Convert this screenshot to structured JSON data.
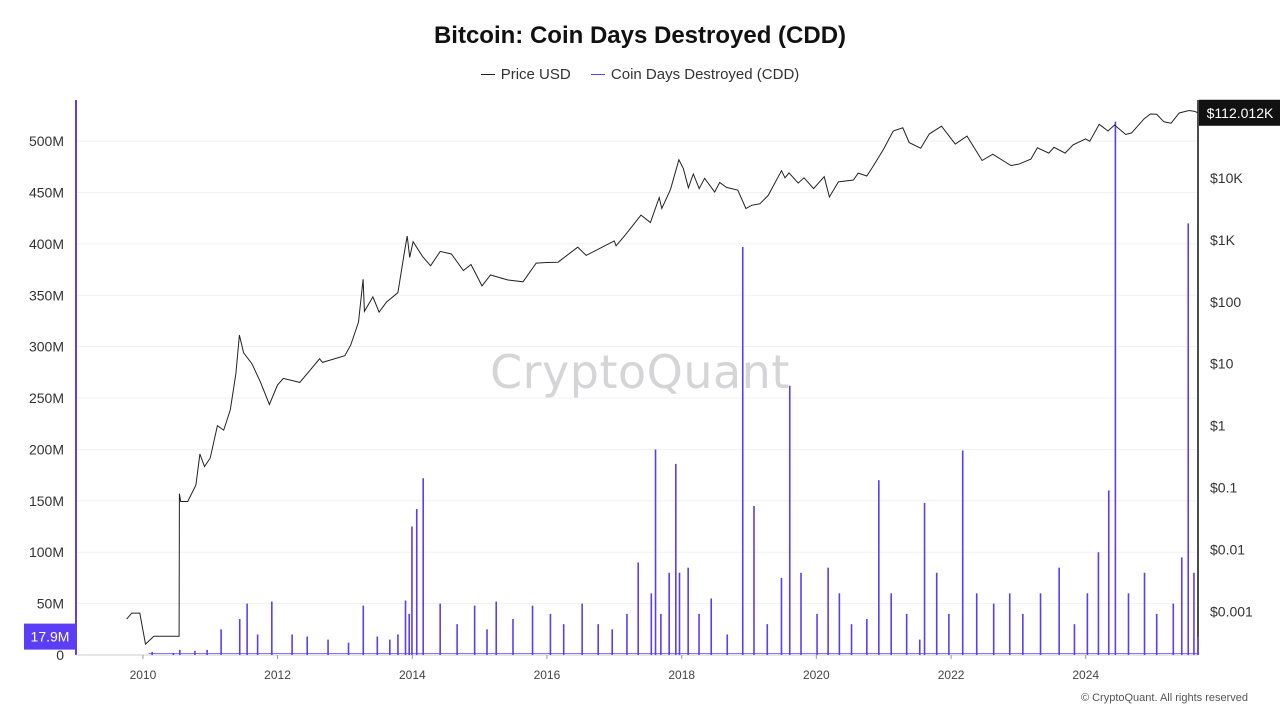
{
  "chart_data": {
    "type": "line",
    "title": "Bitcoin: Coin Days Destroyed (CDD)",
    "legend": [
      "Price USD",
      "Coin Days Destroyed (CDD)"
    ],
    "legend_placement": "top-center",
    "colors": {
      "price": "#222222",
      "cdd": "#5b3df5"
    },
    "watermark": "CryptoQuant",
    "copyright": "© CryptoQuant. All rights reserved",
    "x_axis": {
      "type": "date",
      "range": [
        "2009-01-03",
        "2025-09-01"
      ],
      "tick_labels": [
        "2010",
        "2012",
        "2014",
        "2016",
        "2018",
        "2020",
        "2022",
        "2024"
      ]
    },
    "y_left": {
      "label": "",
      "range": [
        0,
        540000000
      ],
      "tick_values": [
        0,
        50000000,
        100000000,
        150000000,
        200000000,
        250000000,
        300000000,
        350000000,
        400000000,
        450000000,
        500000000
      ],
      "tick_labels": [
        "0",
        "50M",
        "100M",
        "150M",
        "200M",
        "250M",
        "300M",
        "350M",
        "400M",
        "450M",
        "500M"
      ]
    },
    "y_right": {
      "label": "",
      "scale": "log",
      "range": [
        0.0002,
        180000
      ],
      "tick_values": [
        0.001,
        0.01,
        0.1,
        1,
        10,
        100,
        1000,
        10000
      ],
      "tick_labels": [
        "$0.001",
        "$0.01",
        "$0.1",
        "$1",
        "$10",
        "$100",
        "$1K",
        "$10K"
      ]
    },
    "current_values": {
      "cdd": "17.9M",
      "price": "$112.012K"
    },
    "series": [
      {
        "name": "Price USD",
        "axis": "right",
        "points": [
          [
            "2009-10-05",
            0.00076
          ],
          [
            "2009-11-01",
            0.00095
          ],
          [
            "2009-12-15",
            0.00095
          ],
          [
            "2010-01-15",
            0.0003
          ],
          [
            "2010-03-01",
            0.0004
          ],
          [
            "2010-07-16",
            0.0004
          ],
          [
            "2010-07-18",
            0.08
          ],
          [
            "2010-07-25",
            0.06
          ],
          [
            "2010-09-01",
            0.06
          ],
          [
            "2010-10-15",
            0.11
          ],
          [
            "2010-11-06",
            0.35
          ],
          [
            "2010-12-01",
            0.22
          ],
          [
            "2011-01-01",
            0.3
          ],
          [
            "2011-02-09",
            1.0
          ],
          [
            "2011-03-15",
            0.85
          ],
          [
            "2011-04-20",
            1.8
          ],
          [
            "2011-05-20",
            7.0
          ],
          [
            "2011-06-08",
            29.0
          ],
          [
            "2011-07-01",
            15.0
          ],
          [
            "2011-08-15",
            10.0
          ],
          [
            "2011-10-01",
            5.0
          ],
          [
            "2011-11-18",
            2.2
          ],
          [
            "2011-12-31",
            4.5
          ],
          [
            "2012-02-01",
            5.8
          ],
          [
            "2012-05-01",
            5.0
          ],
          [
            "2012-08-16",
            12.0
          ],
          [
            "2012-09-01",
            10.5
          ],
          [
            "2012-12-31",
            13.5
          ],
          [
            "2013-02-01",
            20.0
          ],
          [
            "2013-03-15",
            47.0
          ],
          [
            "2013-04-09",
            230.0
          ],
          [
            "2013-04-16",
            70.0
          ],
          [
            "2013-06-01",
            120.0
          ],
          [
            "2013-07-05",
            68.0
          ],
          [
            "2013-08-15",
            100.0
          ],
          [
            "2013-10-15",
            140.0
          ],
          [
            "2013-11-18",
            600.0
          ],
          [
            "2013-12-04",
            1150.0
          ],
          [
            "2013-12-18",
            520.0
          ],
          [
            "2014-01-05",
            930.0
          ],
          [
            "2014-02-25",
            540.0
          ],
          [
            "2014-04-10",
            380.0
          ],
          [
            "2014-06-01",
            650.0
          ],
          [
            "2014-08-01",
            590.0
          ],
          [
            "2014-10-05",
            320.0
          ],
          [
            "2014-11-15",
            400.0
          ],
          [
            "2015-01-14",
            180.0
          ],
          [
            "2015-03-01",
            270.0
          ],
          [
            "2015-06-01",
            225.0
          ],
          [
            "2015-08-24",
            210.0
          ],
          [
            "2015-11-04",
            420.0
          ],
          [
            "2015-12-31",
            430.0
          ],
          [
            "2016-03-01",
            435.0
          ],
          [
            "2016-06-16",
            760.0
          ],
          [
            "2016-08-01",
            560.0
          ],
          [
            "2016-12-31",
            960.0
          ],
          [
            "2017-01-10",
            800.0
          ],
          [
            "2017-03-01",
            1200.0
          ],
          [
            "2017-05-25",
            2500.0
          ],
          [
            "2017-07-15",
            1900.0
          ],
          [
            "2017-09-01",
            4800.0
          ],
          [
            "2017-09-15",
            3200.0
          ],
          [
            "2017-11-01",
            6500.0
          ],
          [
            "2017-12-17",
            19500.0
          ],
          [
            "2018-01-10",
            14000.0
          ],
          [
            "2018-02-06",
            6900.0
          ],
          [
            "2018-03-05",
            11500.0
          ],
          [
            "2018-04-06",
            6700.0
          ],
          [
            "2018-05-05",
            9800.0
          ],
          [
            "2018-06-29",
            5900.0
          ],
          [
            "2018-07-26",
            8400.0
          ],
          [
            "2018-09-01",
            7000.0
          ],
          [
            "2018-11-01",
            6300.0
          ],
          [
            "2018-12-15",
            3200.0
          ],
          [
            "2019-01-15",
            3600.0
          ],
          [
            "2019-03-01",
            3800.0
          ],
          [
            "2019-04-15",
            5200.0
          ],
          [
            "2019-06-26",
            13000.0
          ],
          [
            "2019-07-15",
            10000.0
          ],
          [
            "2019-08-06",
            12000.0
          ],
          [
            "2019-09-25",
            8200.0
          ],
          [
            "2019-10-26",
            10000.0
          ],
          [
            "2019-12-17",
            6700.0
          ],
          [
            "2020-02-13",
            10400.0
          ],
          [
            "2020-03-12",
            4900.0
          ],
          [
            "2020-04-30",
            8600.0
          ],
          [
            "2020-07-20",
            9200.0
          ],
          [
            "2020-08-15",
            11900.0
          ],
          [
            "2020-10-01",
            10700.0
          ],
          [
            "2020-11-05",
            15500.0
          ],
          [
            "2020-12-31",
            29000.0
          ],
          [
            "2021-02-21",
            57000.0
          ],
          [
            "2021-04-14",
            64000.0
          ],
          [
            "2021-05-19",
            37000.0
          ],
          [
            "2021-07-20",
            30000.0
          ],
          [
            "2021-09-05",
            51000.0
          ],
          [
            "2021-11-10",
            68000.0
          ],
          [
            "2022-01-24",
            35000.0
          ],
          [
            "2022-03-28",
            47000.0
          ],
          [
            "2022-06-18",
            19000.0
          ],
          [
            "2022-08-15",
            24000.0
          ],
          [
            "2022-11-21",
            15800.0
          ],
          [
            "2023-01-01",
            16500.0
          ],
          [
            "2023-03-10",
            20000.0
          ],
          [
            "2023-04-14",
            30500.0
          ],
          [
            "2023-06-15",
            25000.0
          ],
          [
            "2023-07-13",
            31000.0
          ],
          [
            "2023-09-11",
            25000.0
          ],
          [
            "2023-10-24",
            34000.0
          ],
          [
            "2023-12-31",
            42500.0
          ],
          [
            "2024-01-23",
            39000.0
          ],
          [
            "2024-03-14",
            73000.0
          ],
          [
            "2024-05-01",
            57000.0
          ],
          [
            "2024-06-05",
            71000.0
          ],
          [
            "2024-08-05",
            50000.0
          ],
          [
            "2024-09-06",
            53000.0
          ],
          [
            "2024-11-13",
            90000.0
          ],
          [
            "2024-12-17",
            107000.0
          ],
          [
            "2025-01-20",
            106000.0
          ],
          [
            "2025-02-28",
            80000.0
          ],
          [
            "2025-04-08",
            76000.0
          ],
          [
            "2025-05-22",
            111000.0
          ],
          [
            "2025-07-14",
            122000.0
          ],
          [
            "2025-08-14",
            118000.0
          ],
          [
            "2025-09-01",
            112012.0
          ]
        ]
      },
      {
        "name": "Coin Days Destroyed (CDD)",
        "axis": "left",
        "points": [
          [
            "2010-02-20",
            3000000
          ],
          [
            "2010-06-15",
            2000000
          ],
          [
            "2010-07-20",
            5000000
          ],
          [
            "2010-10-10",
            4000000
          ],
          [
            "2010-12-15",
            5000000
          ],
          [
            "2011-03-01",
            25000000
          ],
          [
            "2011-06-10",
            35000000
          ],
          [
            "2011-07-20",
            50000000
          ],
          [
            "2011-09-15",
            20000000
          ],
          [
            "2011-12-01",
            52000000
          ],
          [
            "2012-03-20",
            20000000
          ],
          [
            "2012-06-10",
            18000000
          ],
          [
            "2012-10-01",
            15000000
          ],
          [
            "2013-01-20",
            12000000
          ],
          [
            "2013-04-10",
            48000000
          ],
          [
            "2013-06-25",
            18000000
          ],
          [
            "2013-09-01",
            15000000
          ],
          [
            "2013-10-15",
            20000000
          ],
          [
            "2013-11-25",
            53000000
          ],
          [
            "2013-12-15",
            40000000
          ],
          [
            "2013-12-30",
            125000000
          ],
          [
            "2014-01-25",
            142000000
          ],
          [
            "2014-03-01",
            172000000
          ],
          [
            "2014-06-01",
            50000000
          ],
          [
            "2014-09-01",
            30000000
          ],
          [
            "2014-12-05",
            48000000
          ],
          [
            "2015-02-10",
            25000000
          ],
          [
            "2015-04-01",
            52000000
          ],
          [
            "2015-07-01",
            35000000
          ],
          [
            "2015-10-15",
            48000000
          ],
          [
            "2016-01-20",
            40000000
          ],
          [
            "2016-04-01",
            30000000
          ],
          [
            "2016-07-10",
            50000000
          ],
          [
            "2016-10-05",
            30000000
          ],
          [
            "2016-12-20",
            25000000
          ],
          [
            "2017-03-10",
            40000000
          ],
          [
            "2017-05-10",
            90000000
          ],
          [
            "2017-07-20",
            60000000
          ],
          [
            "2017-08-12",
            200000000
          ],
          [
            "2017-09-10",
            40000000
          ],
          [
            "2017-10-25",
            80000000
          ],
          [
            "2017-11-30",
            186000000
          ],
          [
            "2017-12-20",
            80000000
          ],
          [
            "2018-02-05",
            85000000
          ],
          [
            "2018-04-05",
            40000000
          ],
          [
            "2018-06-10",
            55000000
          ],
          [
            "2018-09-05",
            20000000
          ],
          [
            "2018-11-28",
            397000000
          ],
          [
            "2019-01-28",
            145000000
          ],
          [
            "2019-04-10",
            30000000
          ],
          [
            "2019-06-26",
            75000000
          ],
          [
            "2019-08-10",
            262000000
          ],
          [
            "2019-10-10",
            80000000
          ],
          [
            "2020-01-05",
            40000000
          ],
          [
            "2020-03-05",
            85000000
          ],
          [
            "2020-05-05",
            60000000
          ],
          [
            "2020-07-10",
            30000000
          ],
          [
            "2020-10-01",
            35000000
          ],
          [
            "2020-12-05",
            170000000
          ],
          [
            "2021-02-10",
            60000000
          ],
          [
            "2021-05-05",
            40000000
          ],
          [
            "2021-07-15",
            15000000
          ],
          [
            "2021-08-10",
            148000000
          ],
          [
            "2021-10-15",
            80000000
          ],
          [
            "2021-12-20",
            40000000
          ],
          [
            "2022-03-05",
            199000000
          ],
          [
            "2022-05-20",
            60000000
          ],
          [
            "2022-08-20",
            50000000
          ],
          [
            "2022-11-15",
            60000000
          ],
          [
            "2023-01-25",
            40000000
          ],
          [
            "2023-05-01",
            60000000
          ],
          [
            "2023-08-10",
            85000000
          ],
          [
            "2023-11-01",
            30000000
          ],
          [
            "2024-01-10",
            60000000
          ],
          [
            "2024-03-10",
            100000000
          ],
          [
            "2024-05-05",
            160000000
          ],
          [
            "2024-06-10",
            519000000
          ],
          [
            "2024-08-20",
            60000000
          ],
          [
            "2024-11-15",
            80000000
          ],
          [
            "2025-01-20",
            40000000
          ],
          [
            "2025-04-20",
            50000000
          ],
          [
            "2025-06-05",
            95000000
          ],
          [
            "2025-07-10",
            420000000
          ],
          [
            "2025-08-10",
            80000000
          ],
          [
            "2025-09-01",
            17900000
          ]
        ]
      }
    ]
  }
}
